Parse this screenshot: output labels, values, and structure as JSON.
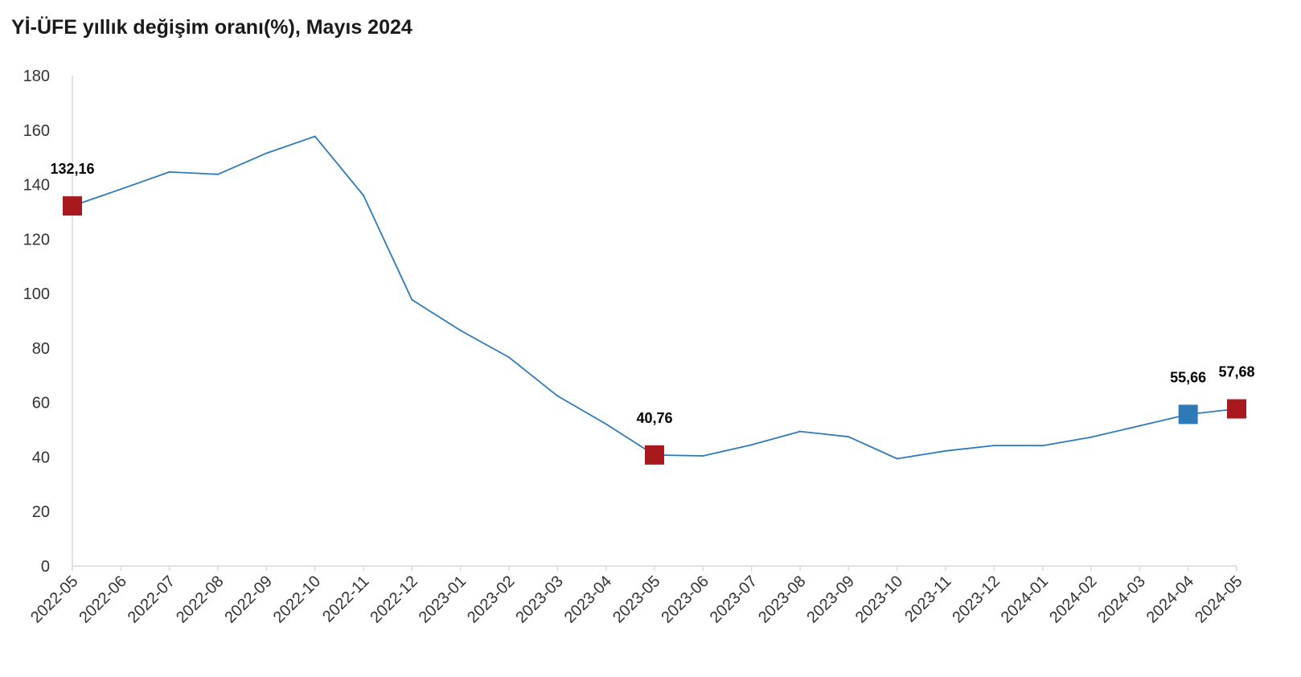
{
  "chart_data": {
    "type": "line",
    "title": "Yİ-ÜFE yıllık değişim oranı(%), Mayıs 2024",
    "xlabel": "",
    "ylabel": "",
    "ylim": [
      0,
      180
    ],
    "yticks": [
      0,
      20,
      40,
      60,
      80,
      100,
      120,
      140,
      160,
      180
    ],
    "grid": false,
    "legend": "none",
    "categories": [
      "2022-05",
      "2022-06",
      "2022-07",
      "2022-08",
      "2022-09",
      "2022-10",
      "2022-11",
      "2022-12",
      "2023-01",
      "2023-02",
      "2023-03",
      "2023-04",
      "2023-05",
      "2023-06",
      "2023-07",
      "2023-08",
      "2023-09",
      "2023-10",
      "2023-11",
      "2023-12",
      "2024-01",
      "2024-02",
      "2024-03",
      "2024-04",
      "2024-05"
    ],
    "series": [
      {
        "name": "Yİ-ÜFE",
        "color": "#2e7ab8",
        "values": [
          132.16,
          138.31,
          144.61,
          143.75,
          151.5,
          157.69,
          136.02,
          97.72,
          86.46,
          76.61,
          62.43,
          52.11,
          40.76,
          40.42,
          44.5,
          49.41,
          47.44,
          39.39,
          42.25,
          44.22,
          44.2,
          47.29,
          51.47,
          55.66,
          57.68
        ]
      }
    ],
    "highlights": [
      {
        "index": 0,
        "label": "132,16",
        "color": "#a8191d"
      },
      {
        "index": 12,
        "label": "40,76",
        "color": "#a8191d"
      },
      {
        "index": 23,
        "label": "55,66",
        "color": "#2e7ab8"
      },
      {
        "index": 24,
        "label": "57,68",
        "color": "#a8191d"
      }
    ],
    "axis_color": "#d9d9d9"
  }
}
